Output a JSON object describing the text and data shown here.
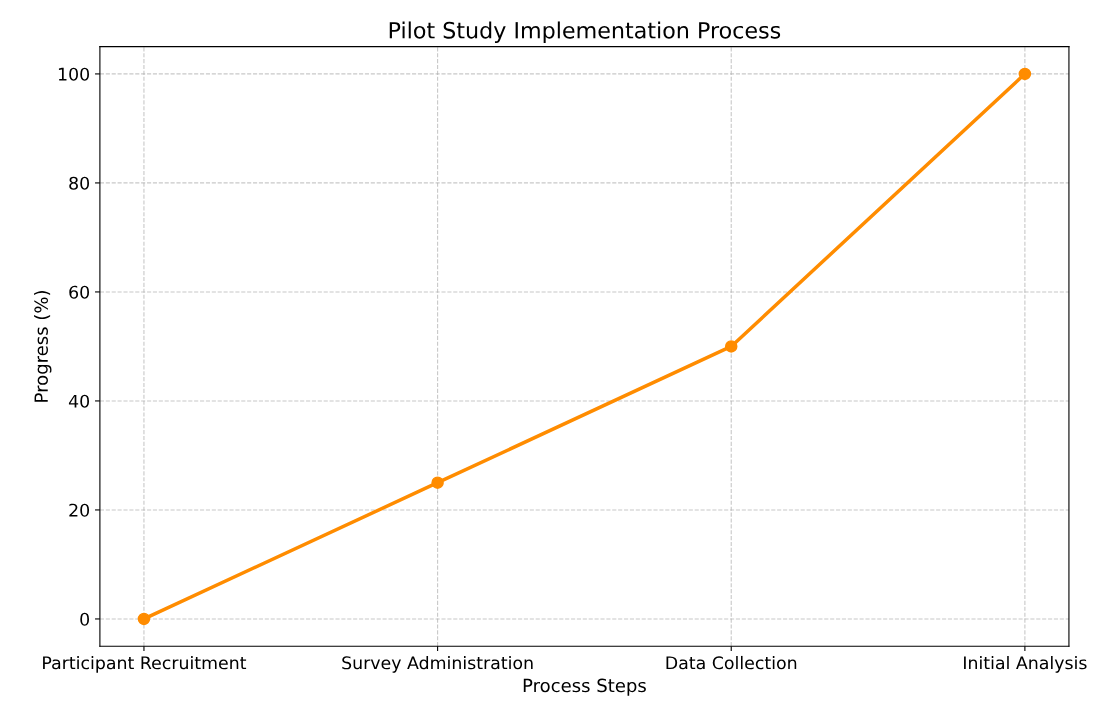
{
  "chart_data": {
    "type": "line",
    "title": "Pilot Study Implementation Process",
    "xlabel": "Process Steps",
    "ylabel": "Progress (%)",
    "categories": [
      "Participant Recruitment",
      "Survey Administration",
      "Data Collection",
      "Initial Analysis"
    ],
    "series": [
      {
        "color": "#ff8c00",
        "values": [
          0,
          25,
          50,
          100
        ]
      }
    ],
    "ylim": [
      -5,
      105
    ],
    "yticks": [
      0,
      20,
      40,
      60,
      80,
      100
    ],
    "grid": true,
    "marker": "circle",
    "line_style": "solid"
  }
}
